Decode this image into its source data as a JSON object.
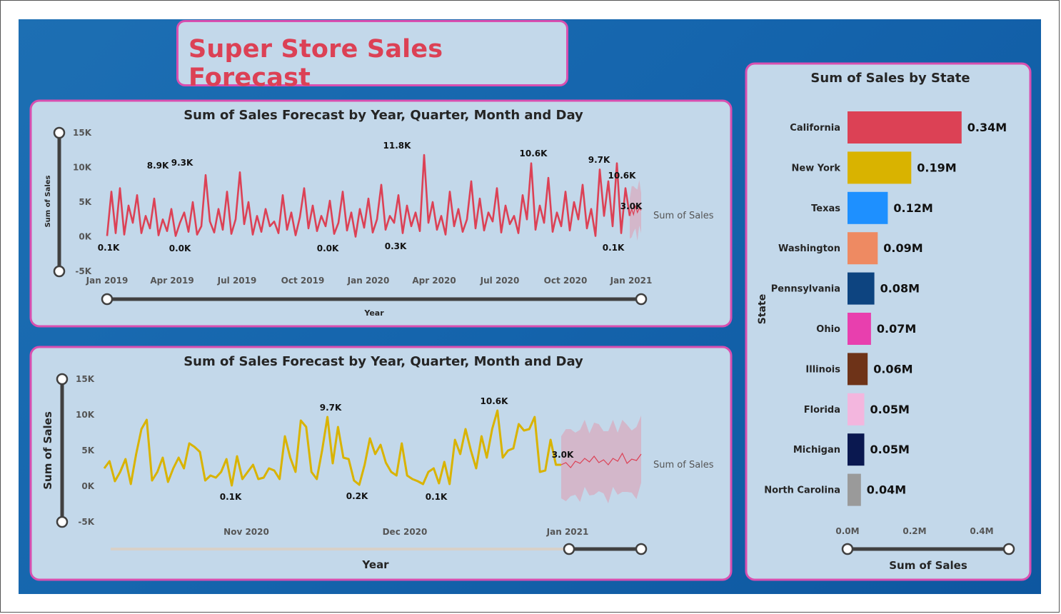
{
  "title": "Super Store Sales Forecast",
  "colors": {
    "accent": "#dc4155",
    "gold": "#d9b300",
    "border": "#d94fb0",
    "panel": "#c3d8ea",
    "background": "#1565ad"
  },
  "chart_data": [
    {
      "type": "line",
      "title": "Sum of Sales Forecast by Year, Quarter, Month and Day",
      "xlabel": "Year",
      "ylabel": "Sum of Sales",
      "legend": "Sum of Sales",
      "x_ticks": [
        "Jan 2019",
        "Apr 2019",
        "Jul 2019",
        "Oct 2019",
        "Jan 2020",
        "Apr 2020",
        "Jul 2020",
        "Oct 2020",
        "Jan 2021"
      ],
      "y_ticks": [
        "15K",
        "10K",
        "5K",
        "0K",
        "-5K"
      ],
      "ylim": [
        -5000,
        15000
      ],
      "xlim": [
        "2019-01-01",
        "2021-01-01"
      ],
      "series": [
        {
          "values": [
            100,
            6500,
            500,
            7000,
            300,
            4500,
            2000,
            6000,
            500,
            3000,
            1200,
            5500,
            200,
            2500,
            800,
            4000,
            100,
            2000,
            3500,
            700,
            5000,
            300,
            1500,
            8900,
            2200,
            600,
            4000,
            1000,
            6500,
            400,
            2500,
            9300,
            1800,
            5000,
            300,
            3000,
            700,
            4000,
            1500,
            2200,
            500,
            6000,
            1000,
            3500,
            200,
            2800,
            7000,
            1200,
            4500,
            800,
            3000,
            1500,
            5200,
            400,
            2000,
            6500,
            900,
            3500,
            0,
            4000,
            1300,
            5500,
            600,
            2500,
            7500,
            1000,
            3000,
            2000,
            6000,
            500,
            4500,
            1500,
            3500,
            800,
            11800,
            2000,
            5000,
            1000,
            3000,
            300,
            6500,
            1500,
            4000,
            700,
            2500,
            8000,
            1200,
            5500,
            900,
            3500,
            2200,
            7000,
            600,
            4500,
            1800,
            3000,
            500,
            6000,
            2500,
            10600,
            1000,
            4500,
            2000,
            8500,
            700,
            3500,
            1500,
            6500,
            900,
            5000,
            2500,
            7500,
            1200,
            4000,
            100,
            9700,
            3000,
            8000,
            1500,
            10600,
            500,
            7000,
            3000
          ]
        },
        {
          "name": "forecast",
          "values": [
            3000,
            4000,
            3200,
            4500,
            3500,
            4100,
            3800
          ]
        }
      ],
      "annotations": [
        "0.1K",
        "8.9K",
        "9.3K",
        "0.0K",
        "0.0K",
        "11.8K",
        "0.3K",
        "10.6K",
        "9.7K",
        "10.6K",
        "3.0K",
        "0.1K"
      ]
    },
    {
      "type": "line",
      "title": "Sum of Sales Forecast by Year, Quarter, Month and Day",
      "xlabel": "Year",
      "ylabel": "Sum of Sales",
      "legend": "Sum of Sales",
      "x_ticks": [
        "Nov 2020",
        "Dec 2020",
        "Jan 2021"
      ],
      "y_ticks": [
        "15K",
        "10K",
        "5K",
        "0K",
        "-5K"
      ],
      "ylim": [
        -5000,
        15000
      ],
      "series": [
        {
          "values": [
            2500,
            3500,
            700,
            2000,
            3800,
            300,
            4500,
            8000,
            9300,
            800,
            2000,
            4000,
            600,
            2500,
            4000,
            2500,
            6000,
            5500,
            4800,
            800,
            1500,
            1200,
            2000,
            3800,
            100,
            4200,
            1000,
            2000,
            3000,
            1000,
            1200,
            2500,
            2200,
            1000,
            7000,
            4000,
            2000,
            9200,
            8300,
            2000,
            1000,
            5000,
            9700,
            3200,
            8300,
            4000,
            3800,
            800,
            200,
            3000,
            6700,
            4500,
            5800,
            3300,
            2000,
            1500,
            6000,
            1500,
            1000,
            700,
            300,
            2000,
            2500,
            400,
            3400,
            300,
            6500,
            4500,
            8000,
            5000,
            2500,
            7000,
            4000,
            8000,
            10600,
            4000,
            5000,
            5300,
            8700,
            7800,
            8000,
            9700,
            2000,
            2200,
            6500,
            3000,
            3000
          ]
        },
        {
          "name": "forecast",
          "values": [
            3000,
            3300,
            2600,
            3500,
            3200,
            3900,
            3400,
            4200,
            3300,
            3700,
            3000,
            3900,
            3500,
            4600,
            3200,
            3800,
            3600,
            4500
          ]
        }
      ],
      "annotations": [
        "0.1K",
        "9.7K",
        "0.2K",
        "0.1K",
        "10.6K",
        "3.0K"
      ]
    },
    {
      "type": "bar",
      "orientation": "horizontal",
      "title": "Sum of Sales by State",
      "xlabel": "Sum of Sales",
      "ylabel": "State",
      "categories": [
        "California",
        "New York",
        "Texas",
        "Washington",
        "Pennsylvania",
        "Ohio",
        "Illinois",
        "Florida",
        "Michigan",
        "North Carolina"
      ],
      "values": [
        0.34,
        0.19,
        0.12,
        0.09,
        0.08,
        0.07,
        0.06,
        0.05,
        0.05,
        0.04
      ],
      "value_labels": [
        "0.34M",
        "0.19M",
        "0.12M",
        "0.09M",
        "0.08M",
        "0.07M",
        "0.06M",
        "0.05M",
        "0.05M",
        "0.04M"
      ],
      "colors": [
        "#dc4155",
        "#d9b300",
        "#1e90ff",
        "#ee8a62",
        "#0d4480",
        "#e83fae",
        "#6e3318",
        "#f3b6de",
        "#0a1850",
        "#9a9a9a"
      ],
      "x_ticks": [
        "0.0M",
        "0.2M",
        "0.4M"
      ],
      "xlim": [
        0,
        0.4
      ]
    }
  ]
}
